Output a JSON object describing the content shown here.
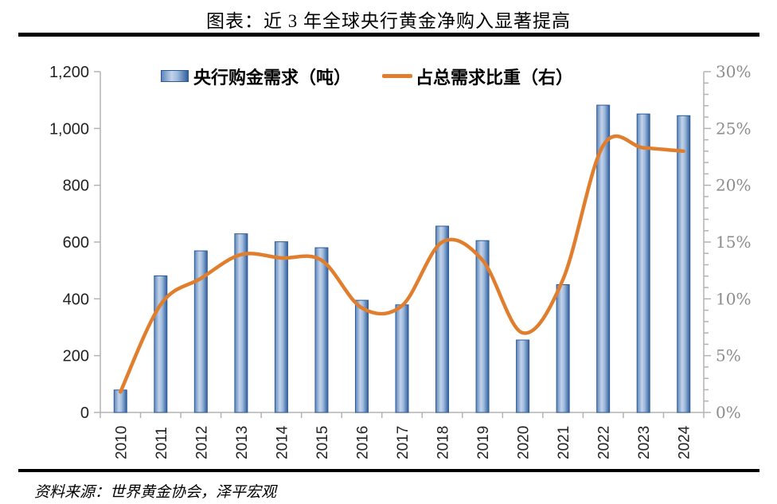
{
  "title": "图表：近 3 年全球央行黄金净购入显著提高",
  "legend": {
    "bar_series_label": "央行购金需求（吨）",
    "line_series_label": "占总需求比重（右）"
  },
  "source": "资料来源：世界黄金协会，泽平宏观",
  "chart_data": {
    "type": "bar",
    "subtype": "combo-bar-line-dual-axis",
    "categories": [
      "2010",
      "2011",
      "2012",
      "2013",
      "2014",
      "2015",
      "2016",
      "2017",
      "2018",
      "2019",
      "2020",
      "2021",
      "2022",
      "2023",
      "2024"
    ],
    "series": [
      {
        "name": "央行购金需求（吨）",
        "type": "bar",
        "axis": "left",
        "unit": "tonnes",
        "values": [
          79,
          481,
          569,
          629,
          601,
          580,
          395,
          379,
          656,
          605,
          255,
          450,
          1082,
          1051,
          1045
        ]
      },
      {
        "name": "占总需求比重（右）",
        "type": "line",
        "axis": "right",
        "unit": "percent",
        "values": [
          1.8,
          9.5,
          11.8,
          13.9,
          13.6,
          13.4,
          9.2,
          9.4,
          15.0,
          13.4,
          7.0,
          11.7,
          23.5,
          23.3,
          23.0
        ]
      }
    ],
    "left_axis": {
      "min": 0,
      "max": 1200,
      "step": 200,
      "tick_labels": [
        "0",
        "200",
        "400",
        "600",
        "800",
        "1,000",
        "1,200"
      ]
    },
    "right_axis": {
      "min": 0,
      "max": 30,
      "step": 5,
      "minor_step": 1,
      "tick_labels": [
        "0%",
        "5%",
        "10%",
        "15%",
        "20%",
        "25%",
        "30%"
      ]
    },
    "grid": "off",
    "legend_position": "top",
    "colors": {
      "bar_edge": "#2d5a96",
      "bar_gradient": [
        "#5c86bd",
        "#c3d3e9",
        "#9fbbdd",
        "#315f9d"
      ],
      "line": "#e07e2e",
      "axis": "#b3b3b3",
      "left_tick_text": "#232323",
      "right_tick_text": "#8c8c8c"
    }
  }
}
